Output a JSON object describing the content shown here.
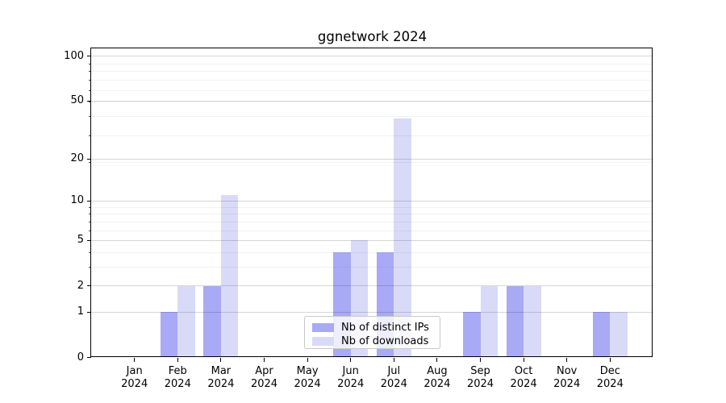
{
  "title": "ggnetwork 2024",
  "chart_data": {
    "type": "bar",
    "title": "ggnetwork 2024",
    "categories": [
      "Jan",
      "Feb",
      "Mar",
      "Apr",
      "May",
      "Jun",
      "Jul",
      "Aug",
      "Sep",
      "Oct",
      "Nov",
      "Dec"
    ],
    "x_tick_second_line": "2024",
    "series": [
      {
        "name": "Nb of distinct IPs",
        "color": "#a8aaf5",
        "values": [
          0,
          1,
          2,
          0,
          0,
          4,
          4,
          0,
          1,
          2,
          0,
          1
        ]
      },
      {
        "name": "Nb of downloads",
        "color": "#d9daf8",
        "values": [
          0,
          2,
          11,
          0,
          0,
          5,
          38,
          0,
          2,
          2,
          0,
          1
        ]
      }
    ],
    "yscale": "log1p",
    "ylim": [
      0,
      114
    ],
    "y_major_ticks": [
      0,
      1,
      2,
      5,
      10,
      20,
      50,
      100
    ],
    "y_minor_ticks": [
      3,
      4,
      6,
      7,
      8,
      9,
      19,
      29,
      39,
      49,
      59,
      69,
      79,
      89
    ],
    "grid": true,
    "legend_position": "lower center"
  },
  "legend": {
    "items": [
      "Nb of distinct IPs",
      "Nb of downloads"
    ]
  },
  "colors": {
    "axis": "#000000",
    "grid_major": "rgba(0,0,0,0.16)",
    "grid_minor": "rgba(0,0,0,0.05)",
    "background": "#ffffff"
  }
}
